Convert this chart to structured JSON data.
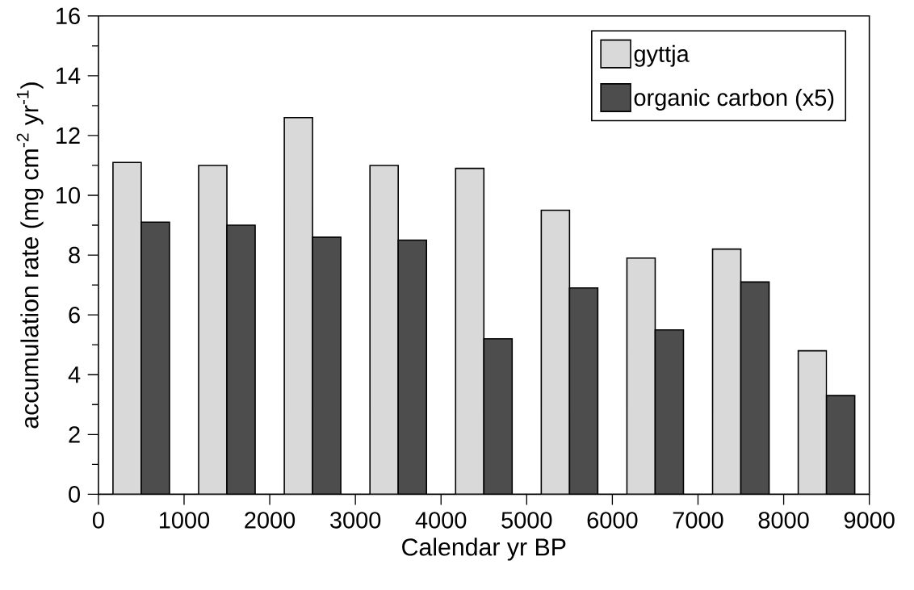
{
  "chart_data": {
    "type": "bar",
    "xlabel": "Calendar yr BP",
    "ylabel": "accumulation rate (mg cm$^{-2}$ yr$^{-1}$)",
    "x": [
      500,
      1500,
      2500,
      3500,
      4500,
      5500,
      6500,
      7500,
      8500
    ],
    "series": [
      {
        "name": "gyttja",
        "color": "#d9d9d9",
        "values": [
          11.1,
          11.0,
          12.6,
          11.0,
          10.9,
          9.5,
          7.9,
          8.2,
          4.8
        ]
      },
      {
        "name": "organic carbon (x5)",
        "color": "#4d4d4d",
        "values": [
          9.1,
          9.0,
          8.6,
          8.5,
          5.2,
          6.9,
          5.5,
          7.1,
          3.3
        ]
      }
    ],
    "xlim": [
      0,
      9000
    ],
    "xticks": [
      0,
      1000,
      2000,
      3000,
      4000,
      5000,
      6000,
      7000,
      8000,
      9000
    ],
    "ylim": [
      0,
      16
    ],
    "yticks": [
      0,
      2,
      4,
      6,
      8,
      10,
      12,
      14,
      16
    ],
    "legend": "top right",
    "grid": false
  }
}
